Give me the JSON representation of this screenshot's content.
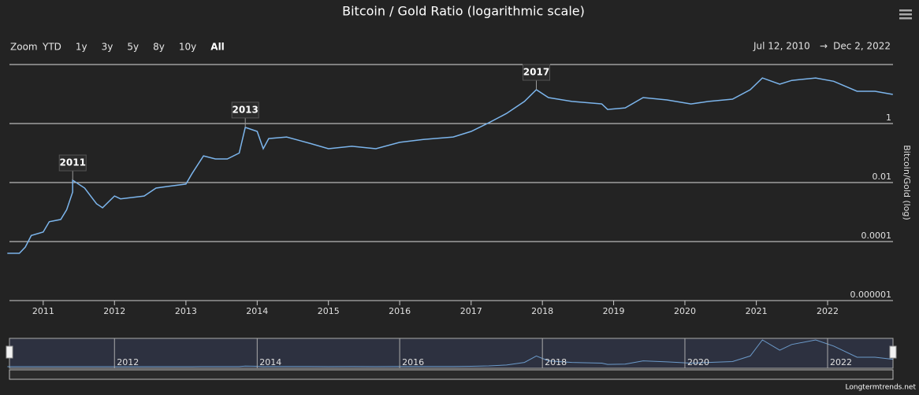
{
  "chart_data": {
    "type": "line",
    "title": "Bitcoin / Gold Ratio (logarithmic scale)",
    "y_axis_label": "Bitcoin/Gold (log)",
    "log_scale": true,
    "grid": true,
    "zoom_label": "Zoom",
    "zoom_buttons": [
      "YTD",
      "1y",
      "3y",
      "5y",
      "8y",
      "10y",
      "All"
    ],
    "range_from": "Jul 12, 2010",
    "range_to": "Dec 2, 2022",
    "range_arrow": "→",
    "source": "Longtermtrends.net",
    "xlim": [
      "2010-07-12",
      "2022-12-02"
    ],
    "xticks": [
      2011,
      2012,
      2013,
      2014,
      2015,
      2016,
      2017,
      2018,
      2019,
      2020,
      2021,
      2022
    ],
    "ylim": [
      1e-06,
      100
    ],
    "yticks": [
      1e-06,
      0.0001,
      0.01,
      1
    ],
    "annotations": [
      {
        "text": "2011",
        "x": "2011-06",
        "y": 0.012
      },
      {
        "text": "2013",
        "x": "2013-11",
        "y": 0.74
      },
      {
        "text": "2017",
        "x": "2017-12",
        "y": 14
      }
    ],
    "navigator_xticks": [
      2012,
      2014,
      2016,
      2018,
      2020,
      2022
    ],
    "series": [
      {
        "name": "Bitcoin/Gold",
        "color": "#7cb5ec",
        "x": [
          "2010-07",
          "2010-09",
          "2010-10",
          "2010-11",
          "2011-01",
          "2011-02",
          "2011-04",
          "2011-05",
          "2011-06",
          "2011-06",
          "2011-08",
          "2011-10",
          "2011-11",
          "2012-01",
          "2012-02",
          "2012-06",
          "2012-08",
          "2012-10",
          "2013-01",
          "2013-02",
          "2013-04",
          "2013-06",
          "2013-08",
          "2013-10",
          "2013-11",
          "2014-01",
          "2014-02",
          "2014-03",
          "2014-06",
          "2014-10",
          "2015-01",
          "2015-05",
          "2015-09",
          "2016-01",
          "2016-05",
          "2016-10",
          "2017-01",
          "2017-04",
          "2017-07",
          "2017-10",
          "2017-12",
          "2018-02",
          "2018-06",
          "2018-11",
          "2018-12",
          "2019-03",
          "2019-06",
          "2019-10",
          "2020-02",
          "2020-05",
          "2020-09",
          "2020-12",
          "2021-02",
          "2021-05",
          "2021-07",
          "2021-11",
          "2022-02",
          "2022-06",
          "2022-09",
          "2022-12"
        ],
        "values": [
          4e-05,
          4e-05,
          6.5e-05,
          0.00016,
          0.00021,
          0.00047,
          0.00056,
          0.0012,
          0.0048,
          0.012,
          0.0065,
          0.0019,
          0.0014,
          0.0035,
          0.0028,
          0.0035,
          0.0065,
          0.0074,
          0.0089,
          0.02,
          0.08,
          0.063,
          0.063,
          0.1,
          0.74,
          0.54,
          0.14,
          0.31,
          0.35,
          0.21,
          0.14,
          0.17,
          0.14,
          0.23,
          0.29,
          0.35,
          0.54,
          1.06,
          2.2,
          5.6,
          14,
          7.6,
          5.6,
          4.6,
          3,
          3.4,
          7.6,
          6.3,
          4.6,
          5.6,
          6.7,
          14,
          35,
          21.5,
          29,
          35,
          27,
          12.4,
          12.4,
          9.7
        ]
      }
    ]
  }
}
